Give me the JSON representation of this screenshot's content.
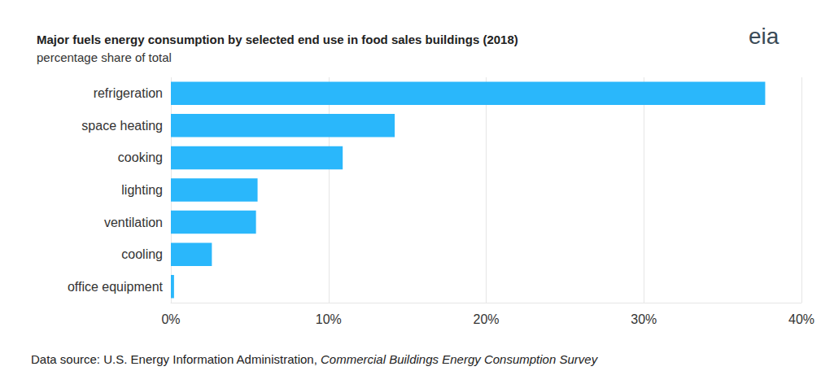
{
  "chart_data": {
    "type": "bar",
    "orientation": "horizontal",
    "title": "Major fuels energy consumption by selected end use in food sales buildings (2018)",
    "subtitle": "percentage share of total",
    "logo": "eia",
    "source_prefix": "Data source: U.S. Energy Information Administration,",
    "source_title": "Commercial Buildings Energy Consumption Survey",
    "categories": [
      "refrigeration",
      "space heating",
      "cooking",
      "lighting",
      "ventilation",
      "cooling",
      "office equipment"
    ],
    "values": [
      37.7,
      14.2,
      10.9,
      5.5,
      5.4,
      2.6,
      0.2
    ],
    "color": "#2ab7fb",
    "xlim": [
      0,
      40
    ],
    "xticks": [
      {
        "value": 0,
        "label": "0%"
      },
      {
        "value": 10,
        "label": "10%"
      },
      {
        "value": 20,
        "label": "20%"
      },
      {
        "value": 30,
        "label": "30%"
      },
      {
        "value": 40,
        "label": "40%"
      }
    ],
    "grid": true
  }
}
